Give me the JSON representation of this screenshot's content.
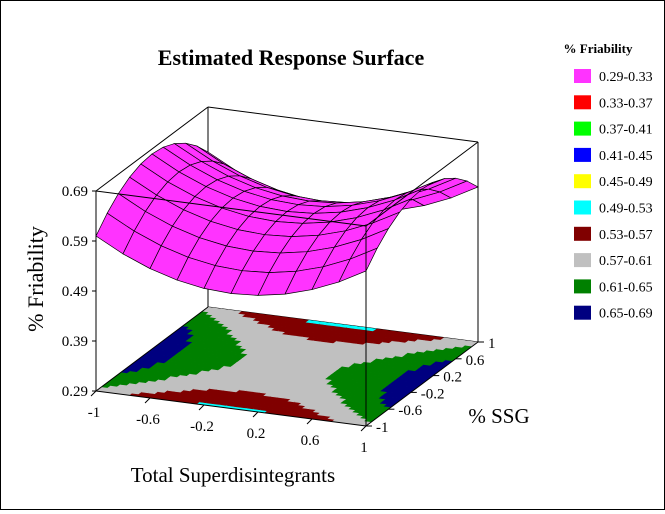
{
  "chart_data": {
    "type": "surface3d",
    "title": "Estimated Response Surface",
    "xlabel": "Total Superdisintegrants",
    "ylabel": "% SSG",
    "zlabel": "% Friability",
    "x_ticks": [
      "-1",
      "-0.6",
      "-0.2",
      "0.2",
      "0.6",
      "1"
    ],
    "y_ticks": [
      "-1",
      "-0.6",
      "-0.2",
      "0.2",
      "0.6",
      "1"
    ],
    "z_ticks": [
      "0.29",
      "0.39",
      "0.49",
      "0.59",
      "0.69"
    ],
    "xlim": [
      -1,
      1
    ],
    "ylim": [
      -1,
      1
    ],
    "zlim": [
      0.29,
      0.69
    ],
    "surface": {
      "model": "friability = 0.6 + 0.08*x^2 - 0.08*y^2",
      "x_range": [
        -1,
        1
      ],
      "y_range": [
        -1,
        1
      ],
      "grid": 10,
      "color": "#ff33ff"
    },
    "legend": {
      "title": "% Friability",
      "position": "right",
      "entries": [
        {
          "label": "0.29-0.33",
          "color": "#ff33ff"
        },
        {
          "label": "0.33-0.37",
          "color": "#ff0000"
        },
        {
          "label": "0.37-0.41",
          "color": "#00ff00"
        },
        {
          "label": "0.41-0.45",
          "color": "#0000ff"
        },
        {
          "label": "0.45-0.49",
          "color": "#ffff00"
        },
        {
          "label": "0.49-0.53",
          "color": "#00ffff"
        },
        {
          "label": "0.53-0.57",
          "color": "#800000"
        },
        {
          "label": "0.57-0.61",
          "color": "#c0c0c0"
        },
        {
          "label": "0.61-0.65",
          "color": "#008000"
        },
        {
          "label": "0.65-0.69",
          "color": "#000080"
        }
      ]
    }
  }
}
